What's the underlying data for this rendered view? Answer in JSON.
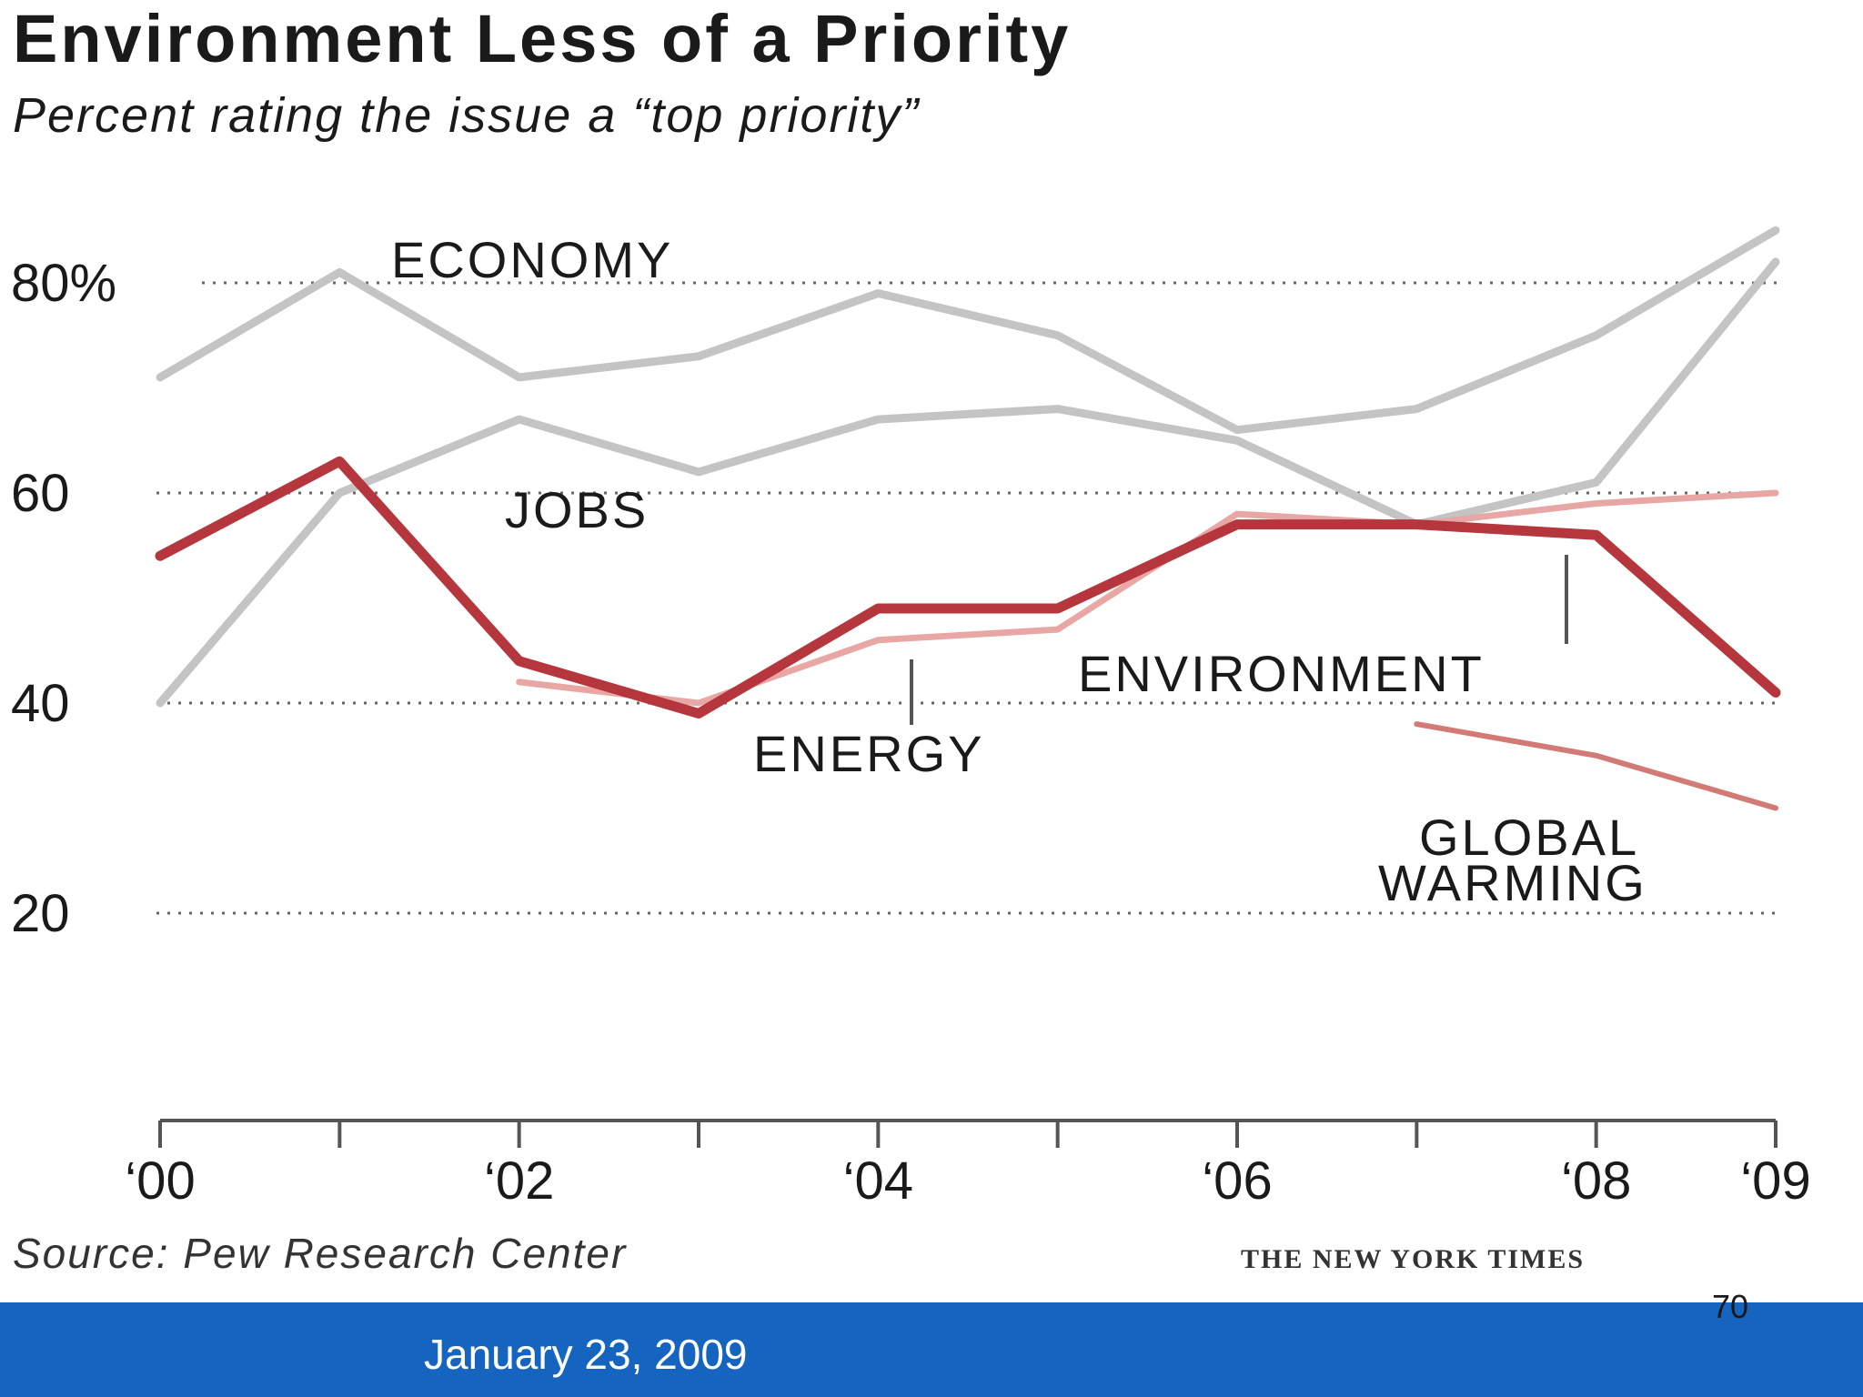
{
  "chart_data": {
    "type": "line",
    "title": "Environment Less of a Priority",
    "subtitle": "Percent rating the issue a “top priority”",
    "ylim": [
      0,
      85
    ],
    "y_ticks": [
      20,
      40,
      60,
      80
    ],
    "y_tick_labels": [
      "20",
      "40",
      "60",
      "80%"
    ],
    "x_ticks": [
      2000,
      2001,
      2002,
      2003,
      2004,
      2005,
      2006,
      2007,
      2008,
      2009
    ],
    "x_tick_labels": [
      "‘00",
      "‘02",
      "‘04",
      "‘06",
      "‘08",
      "‘09"
    ],
    "x_labeled_ticks": [
      2000,
      2002,
      2004,
      2006,
      2008,
      2009
    ],
    "series": [
      {
        "name": "ECONOMY",
        "color": "#c4c4c4",
        "x": [
          2000,
          2001,
          2002,
          2003,
          2004,
          2005,
          2006,
          2007,
          2008,
          2009
        ],
        "values": [
          71,
          81,
          71,
          73,
          79,
          75,
          66,
          68,
          75,
          85
        ]
      },
      {
        "name": "JOBS",
        "color": "#c4c4c4",
        "x": [
          2000,
          2001,
          2002,
          2003,
          2004,
          2005,
          2006,
          2007,
          2008,
          2009
        ],
        "values": [
          40,
          60,
          67,
          62,
          67,
          68,
          65,
          57,
          61,
          82
        ]
      },
      {
        "name": "ENERGY",
        "color": "#e8a7a4",
        "x": [
          2002,
          2003,
          2004,
          2005,
          2006,
          2007,
          2008,
          2009
        ],
        "values": [
          42,
          40,
          46,
          47,
          58,
          57,
          59,
          60
        ]
      },
      {
        "name": "ENVIRONMENT",
        "color": "#b5373d",
        "x": [
          2000,
          2001,
          2002,
          2003,
          2004,
          2005,
          2006,
          2007,
          2008,
          2009
        ],
        "values": [
          54,
          63,
          44,
          39,
          49,
          49,
          57,
          57,
          56,
          41
        ]
      },
      {
        "name": "GLOBAL WARMING",
        "color": "#d27a76",
        "x": [
          2007,
          2008,
          2009
        ],
        "values": [
          38,
          35,
          30
        ]
      }
    ],
    "labels": {
      "economy": "ECONOMY",
      "jobs": "JOBS",
      "energy": "ENERGY",
      "environment": "ENVIRONMENT",
      "global_warming_line1": "GLOBAL",
      "global_warming_line2": "WARMING"
    },
    "source": "Source: Pew Research Center",
    "credit": "THE NEW YORK TIMES"
  },
  "footer": {
    "date": "January 23, 2009",
    "page_number": "70",
    "background": "#1565c0"
  }
}
